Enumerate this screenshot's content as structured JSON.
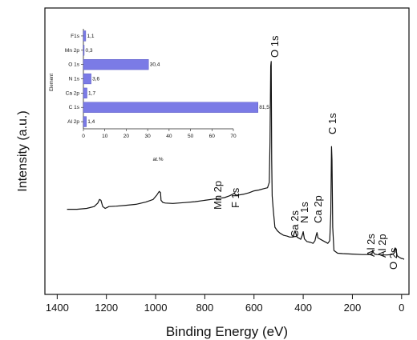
{
  "chart_data": [
    {
      "type": "line",
      "xlabel": "Binding Energy (eV)",
      "ylabel": "Intensity (a.u.)",
      "xlim": [
        1450,
        -30
      ],
      "x_reversed": true,
      "y_axis_ticks": false,
      "xticks": [
        1400,
        1200,
        1000,
        800,
        600,
        400,
        200,
        0
      ],
      "tick_labels": [
        "1400",
        "1200",
        "1000",
        "800",
        "600",
        "400",
        "200",
        "0"
      ],
      "series": [
        {
          "color": "#111111",
          "x": [
            1360,
            1320,
            1280,
            1250,
            1235,
            1228,
            1222,
            1215,
            1205,
            1190,
            1160,
            1120,
            1080,
            1040,
            1010,
            995,
            985,
            980,
            978,
            970,
            960,
            930,
            880,
            840,
            800,
            760,
            720,
            700,
            685,
            680,
            675,
            660,
            640,
            620,
            600,
            580,
            560,
            545,
            538,
            535,
            532,
            530,
            528,
            526,
            522,
            515,
            505,
            495,
            480,
            465,
            455,
            440,
            437,
            433,
            425,
            410,
            404,
            400,
            395,
            385,
            370,
            360,
            352,
            348,
            344,
            340,
            320,
            300,
            292,
            288,
            285,
            283,
            280,
            275,
            260,
            240,
            200,
            160,
            130,
            120,
            118,
            115,
            110,
            100,
            80,
            60,
            40,
            30,
            26,
            22,
            18,
            10,
            0,
            -5,
            -10
          ],
          "y": [
            190,
            190,
            192,
            196,
            204,
            212,
            210,
            196,
            192,
            196,
            197,
            199,
            201,
            206,
            212,
            222,
            230,
            227,
            210,
            205,
            204,
            203,
            205,
            207,
            210,
            213,
            216,
            220,
            224,
            226,
            222,
            222,
            224,
            227,
            231,
            233,
            236,
            238,
            250,
            340,
            510,
            520,
            300,
            220,
            190,
            150,
            142,
            137,
            132,
            130,
            128,
            128,
            136,
            142,
            128,
            123,
            132,
            140,
            124,
            118,
            116,
            114,
            120,
            130,
            138,
            126,
            120,
            114,
            120,
            180,
            330,
            300,
            150,
            98,
            92,
            91,
            90,
            89,
            89,
            92,
            98,
            94,
            90,
            89,
            88,
            88,
            89,
            92,
            104,
            98,
            86,
            83,
            80,
            80,
            78
          ]
        }
      ],
      "annotations": [
        "O 1s",
        "C 1s",
        "Mn 2p",
        "F 1s",
        "Ca 2s",
        "N 1s",
        "Ca 2p",
        "Al 2s",
        "Al 2p",
        "O 2s"
      ]
    },
    {
      "type": "bar",
      "orientation": "horizontal",
      "ylabel": "Element",
      "xlabel": "at.%",
      "xlim": [
        0,
        70
      ],
      "xticks": [
        0,
        10,
        20,
        30,
        40,
        50,
        60,
        70
      ],
      "tick_labels": [
        "0",
        "10",
        "20",
        "30",
        "40",
        "50",
        "60",
        "70"
      ],
      "categories": [
        "F1s",
        "Mn 2p",
        "O 1s",
        "N 1s",
        "Ca 2p",
        "C 1s",
        "Al 2p"
      ],
      "values": [
        1.1,
        0.3,
        30.4,
        3.6,
        1.7,
        81.5,
        1.4
      ],
      "value_labels": [
        "1,1",
        "0,3",
        "30,4",
        "3,6",
        "1,7",
        "81,5",
        "1,4"
      ],
      "bar_color": "#7b7be6"
    }
  ]
}
